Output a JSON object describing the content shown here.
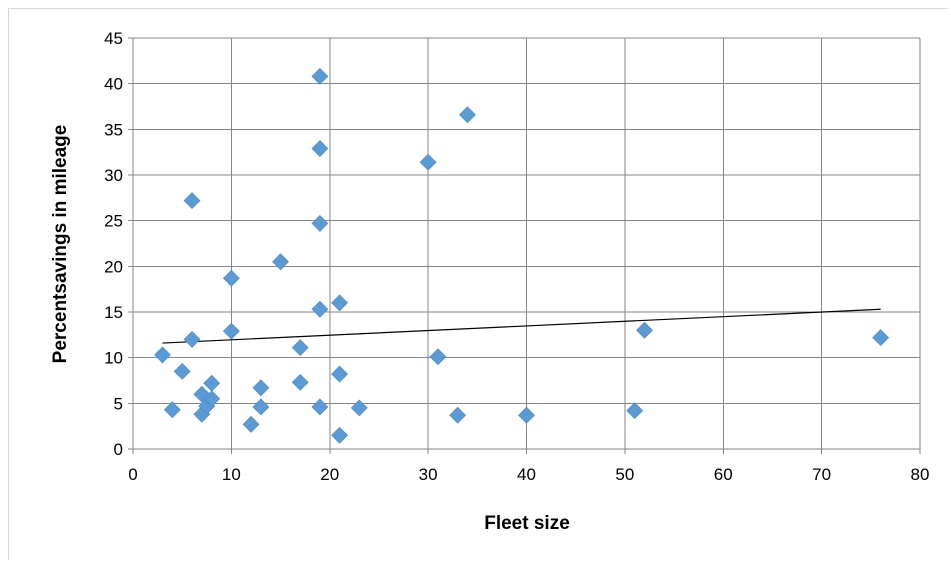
{
  "chart_data": {
    "type": "scatter",
    "title": "",
    "xlabel": "Fleet size",
    "ylabel": "Percentsavings in mileage",
    "xlim": [
      0,
      80
    ],
    "ylim": [
      0,
      45
    ],
    "xticks": [
      0,
      10,
      20,
      30,
      40,
      50,
      60,
      70,
      80
    ],
    "yticks": [
      0,
      5,
      10,
      15,
      20,
      25,
      30,
      35,
      40,
      45
    ],
    "grid": true,
    "legend": "none",
    "marker": "diamond",
    "colors": {
      "marker": "#5b9bd5",
      "gridline": "#868686",
      "trendline": "#000000"
    },
    "series": [
      {
        "points": [
          [
            3,
            10.3
          ],
          [
            4,
            4.3
          ],
          [
            5,
            8.5
          ],
          [
            6,
            27.2
          ],
          [
            6,
            12.0
          ],
          [
            7,
            6.0
          ],
          [
            7,
            3.8
          ],
          [
            7.5,
            4.7
          ],
          [
            8,
            7.2
          ],
          [
            8,
            5.5
          ],
          [
            10,
            18.7
          ],
          [
            10,
            12.9
          ],
          [
            12,
            2.7
          ],
          [
            13,
            6.7
          ],
          [
            13,
            4.6
          ],
          [
            15,
            20.5
          ],
          [
            17,
            11.1
          ],
          [
            17,
            7.3
          ],
          [
            19,
            40.8
          ],
          [
            19,
            32.9
          ],
          [
            19,
            24.7
          ],
          [
            19,
            15.3
          ],
          [
            19,
            4.6
          ],
          [
            21,
            16.0
          ],
          [
            21,
            8.2
          ],
          [
            21,
            1.5
          ],
          [
            23,
            4.5
          ],
          [
            30,
            31.4
          ],
          [
            31,
            10.1
          ],
          [
            33,
            3.7
          ],
          [
            34,
            36.6
          ],
          [
            40,
            3.7
          ],
          [
            51,
            4.2
          ],
          [
            52,
            13.0
          ],
          [
            76,
            12.2
          ]
        ]
      }
    ],
    "trendline": {
      "type": "linear",
      "x": [
        3,
        76
      ],
      "y": [
        11.6,
        15.3
      ]
    }
  }
}
